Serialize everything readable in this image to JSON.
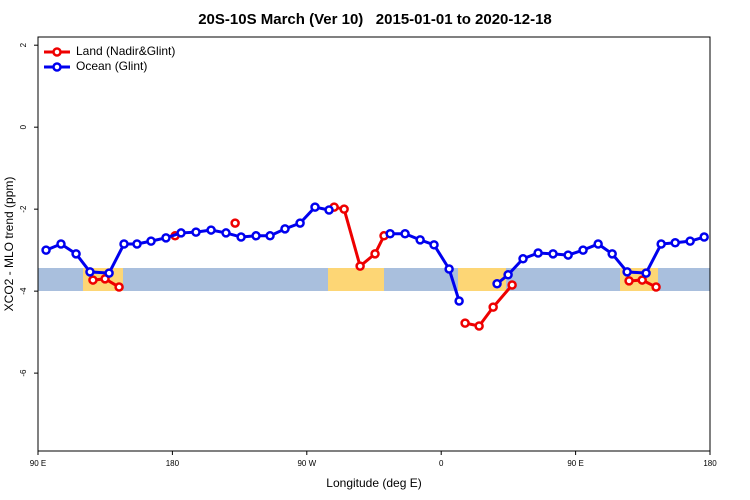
{
  "chart_data": {
    "type": "line",
    "title": "20S-10S March (Ver 10)   2015-01-01 to 2020-12-18",
    "x_label": "Longitude (deg E)",
    "y_label": "XCO2 - MLO trend (ppm)",
    "xlim": [
      90,
      540
    ],
    "ylim": [
      -7.9,
      2.2
    ],
    "xticks": [
      {
        "value": 90,
        "label": "90 E"
      },
      {
        "value": 180,
        "label": "180"
      },
      {
        "value": 270,
        "label": "90 W"
      },
      {
        "value": 360,
        "label": "0"
      },
      {
        "value": 450,
        "label": "90 E"
      },
      {
        "value": 540,
        "label": "180"
      }
    ],
    "yticks": [
      2,
      0,
      -2,
      -4,
      -6
    ],
    "legend": "top-left",
    "series": [
      {
        "name": "Land (Nadir&Glint)",
        "color": "#ee0000",
        "x": [
          126.8,
          134.9,
          144.3,
          null,
          181.8,
          null,
          222,
          null,
          288.3,
          295,
          305.7,
          315.7,
          321.7,
          null,
          376,
          385.4,
          394.8,
          407.5,
          null,
          485.8,
          494.6,
          503.9
        ],
        "values": [
          -3.73,
          -3.7,
          -3.9,
          null,
          -2.65,
          null,
          -2.34,
          null,
          -1.95,
          -2.0,
          -3.39,
          -3.09,
          -2.65,
          null,
          -4.78,
          -4.85,
          -4.39,
          -3.85,
          null,
          -3.75,
          -3.73,
          -3.9
        ]
      },
      {
        "name": "Ocean (Glint)",
        "color": "#0000ee",
        "x": [
          95.4,
          105.4,
          115.5,
          124.8,
          137.6,
          147.6,
          156.3,
          165.7,
          175.7,
          185.8,
          195.8,
          205.9,
          215.9,
          226,
          236,
          245.4,
          255.4,
          265.5,
          275.5,
          284.9,
          null,
          325.8,
          335.8,
          345.9,
          355.2,
          365.3,
          372,
          null,
          397.4,
          404.8,
          414.8,
          424.9,
          434.9,
          445,
          455,
          465.1,
          474.5,
          484.5,
          497.2,
          507.3,
          516.7,
          526.7,
          536.1
        ],
        "values": [
          -3.0,
          -2.85,
          -3.09,
          -3.53,
          -3.56,
          -2.85,
          -2.85,
          -2.78,
          -2.7,
          -2.58,
          -2.56,
          -2.51,
          -2.58,
          -2.68,
          -2.65,
          -2.65,
          -2.48,
          -2.34,
          -1.95,
          -2.02,
          null,
          -2.6,
          -2.6,
          -2.75,
          -2.87,
          -3.46,
          -4.24,
          null,
          -3.82,
          -3.6,
          -3.21,
          -3.07,
          -3.09,
          -3.12,
          -3.0,
          -2.85,
          -3.09,
          -3.53,
          -3.56,
          -2.85,
          -2.82,
          -2.78,
          -2.68
        ]
      }
    ]
  }
}
